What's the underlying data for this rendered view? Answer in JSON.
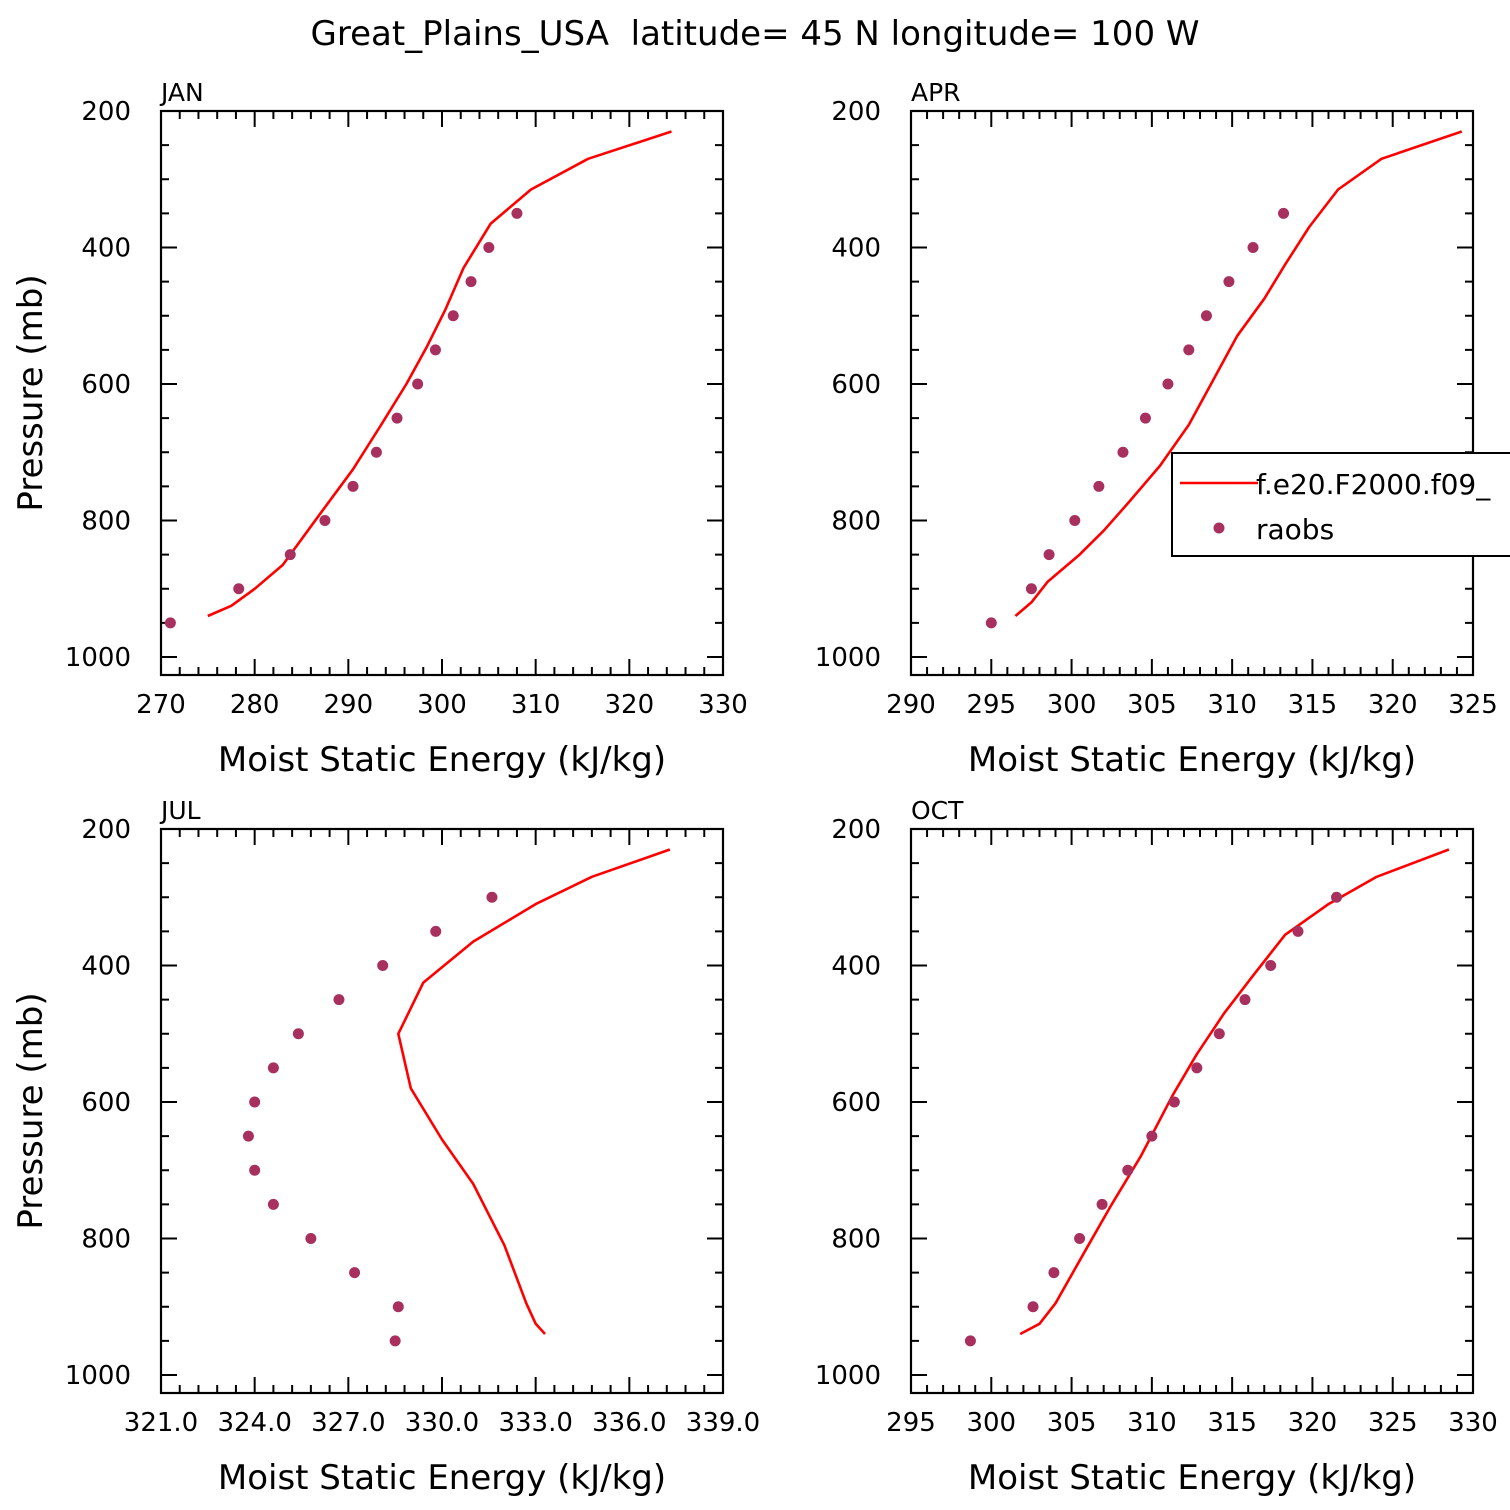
{
  "figure_title": "Great_Plains_USA  latitude= 45 N longitude= 100 W",
  "legend": {
    "model_label": "f.e20.F2000.f09_",
    "obs_label": "raobs",
    "model_color": "#ff0000",
    "obs_color": "#a8305f"
  },
  "chart_data": [
    {
      "type": "line",
      "panel_title": "JAN",
      "xlabel": "Moist Static Energy (kJ/kg)",
      "ylabel": "Pressure (mb)",
      "xlim": [
        270,
        330
      ],
      "ylim": [
        1000,
        200
      ],
      "x_ticks": [
        270,
        280,
        290,
        300,
        310,
        320,
        330
      ],
      "x_tick_labels": [
        "270",
        "280",
        "290",
        "300",
        "310",
        "320",
        "330"
      ],
      "y_ticks": [
        200,
        400,
        600,
        800,
        1000
      ],
      "y_tick_labels": [
        "200",
        "400",
        "600",
        "800",
        "1000"
      ],
      "series": [
        {
          "name": "f.e20.F2000.f09_",
          "style": "line",
          "x": [
            275.0,
            277.5,
            280.0,
            283.0,
            287.0,
            290.5,
            293.5,
            296.2,
            298.4,
            300.4,
            302.3,
            305.2,
            309.5,
            315.6,
            324.5
          ],
          "y": [
            940,
            925,
            900,
            865,
            790,
            725,
            660,
            600,
            545,
            490,
            430,
            365,
            315,
            270,
            230
          ]
        },
        {
          "name": "raobs",
          "style": "markers",
          "x": [
            271.0,
            278.3,
            283.8,
            287.5,
            290.5,
            293.0,
            295.2,
            297.4,
            299.3,
            301.2,
            303.1,
            305.0,
            308.0
          ],
          "y": [
            950,
            900,
            850,
            800,
            750,
            700,
            650,
            600,
            550,
            500,
            450,
            400,
            350
          ]
        }
      ]
    },
    {
      "type": "line",
      "panel_title": "APR",
      "xlabel": "Moist Static Energy (kJ/kg)",
      "ylabel": "",
      "xlim": [
        290,
        325
      ],
      "ylim": [
        1000,
        200
      ],
      "x_ticks": [
        290,
        295,
        300,
        305,
        310,
        315,
        320,
        325
      ],
      "x_tick_labels": [
        "290",
        "295",
        "300",
        "305",
        "310",
        "315",
        "320",
        "325"
      ],
      "y_ticks": [
        200,
        400,
        600,
        800,
        1000
      ],
      "y_tick_labels": [
        "200",
        "400",
        "600",
        "800",
        "1000"
      ],
      "legend_position": "right-middle",
      "series": [
        {
          "name": "f.e20.F2000.f09_",
          "style": "line",
          "x": [
            296.5,
            297.5,
            298.5,
            300.5,
            302.0,
            303.5,
            305.5,
            307.3,
            308.8,
            310.3,
            312.0,
            313.3,
            314.8,
            316.6,
            319.3,
            324.3
          ],
          "y": [
            940,
            920,
            890,
            850,
            815,
            775,
            720,
            660,
            595,
            530,
            475,
            425,
            370,
            315,
            270,
            230
          ]
        },
        {
          "name": "raobs",
          "style": "markers",
          "x": [
            295.0,
            297.5,
            298.6,
            300.2,
            301.7,
            303.2,
            304.6,
            306.0,
            307.3,
            308.4,
            309.8,
            311.3,
            313.2
          ],
          "y": [
            950,
            900,
            850,
            800,
            750,
            700,
            650,
            600,
            550,
            500,
            450,
            400,
            350
          ]
        }
      ]
    },
    {
      "type": "line",
      "panel_title": "JUL",
      "xlabel": "Moist Static Energy (kJ/kg)",
      "ylabel": "Pressure (mb)",
      "xlim": [
        321,
        339
      ],
      "ylim": [
        1000,
        200
      ],
      "x_ticks": [
        321,
        324,
        327,
        330,
        333,
        336,
        339
      ],
      "x_tick_labels": [
        "321.0",
        "324.0",
        "327.0",
        "330.0",
        "333.0",
        "336.0",
        "339.0"
      ],
      "y_ticks": [
        200,
        400,
        600,
        800,
        1000
      ],
      "y_tick_labels": [
        "200",
        "400",
        "600",
        "800",
        "1000"
      ],
      "series": [
        {
          "name": "f.e20.F2000.f09_",
          "style": "line",
          "x": [
            333.3,
            333.0,
            332.7,
            332.0,
            331.0,
            330.0,
            329.0,
            328.6,
            329.4,
            331.0,
            333.0,
            334.8,
            337.3
          ],
          "y": [
            940,
            925,
            895,
            810,
            720,
            655,
            580,
            500,
            425,
            365,
            310,
            270,
            230
          ]
        },
        {
          "name": "raobs",
          "style": "markers",
          "x": [
            328.5,
            328.6,
            327.2,
            325.8,
            324.6,
            324.0,
            323.8,
            324.0,
            324.6,
            325.4,
            326.7,
            328.1,
            329.8,
            331.6
          ],
          "y": [
            950,
            900,
            850,
            800,
            750,
            700,
            650,
            600,
            550,
            500,
            450,
            400,
            350,
            300
          ]
        }
      ]
    },
    {
      "type": "line",
      "panel_title": "OCT",
      "xlabel": "Moist Static Energy (kJ/kg)",
      "ylabel": "",
      "xlim": [
        295,
        330
      ],
      "ylim": [
        1000,
        200
      ],
      "x_ticks": [
        295,
        300,
        305,
        310,
        315,
        320,
        325,
        330
      ],
      "x_tick_labels": [
        "295",
        "300",
        "305",
        "310",
        "315",
        "320",
        "325",
        "330"
      ],
      "y_ticks": [
        200,
        400,
        600,
        800,
        1000
      ],
      "y_tick_labels": [
        "200",
        "400",
        "600",
        "800",
        "1000"
      ],
      "series": [
        {
          "name": "f.e20.F2000.f09_",
          "style": "line",
          "x": [
            301.8,
            303.0,
            304.0,
            305.8,
            307.5,
            309.3,
            311.3,
            312.8,
            314.5,
            316.3,
            318.3,
            321.0,
            324.0,
            328.5
          ],
          "y": [
            940,
            925,
            895,
            820,
            750,
            680,
            590,
            530,
            470,
            415,
            355,
            310,
            270,
            230
          ]
        },
        {
          "name": "raobs",
          "style": "markers",
          "x": [
            298.7,
            302.6,
            303.9,
            305.5,
            306.9,
            308.5,
            310.0,
            311.4,
            312.8,
            314.2,
            315.8,
            317.4,
            319.1,
            321.5
          ],
          "y": [
            950,
            900,
            850,
            800,
            750,
            700,
            650,
            600,
            550,
            500,
            450,
            400,
            350,
            300
          ]
        }
      ]
    }
  ]
}
